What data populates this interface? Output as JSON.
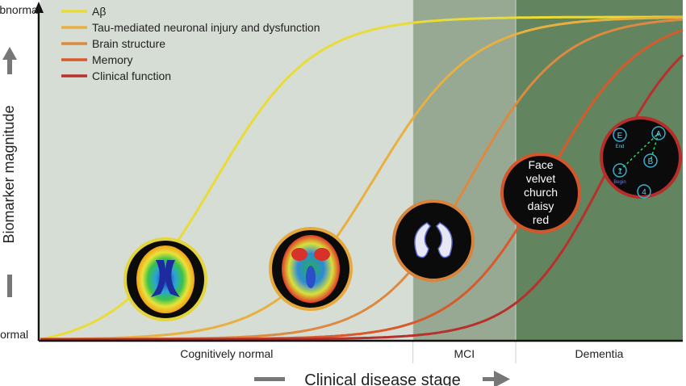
{
  "chart_data": {
    "type": "line",
    "title": "",
    "xlabel": "Clinical disease stage",
    "ylabel": "Biomarker magnitude",
    "y_tick_labels": [
      "Abnormal",
      "Normal"
    ],
    "stages": [
      "Cognitively normal",
      "MCI",
      "Dementia"
    ],
    "stage_bounds": [
      0,
      0.58,
      0.74,
      1.0
    ],
    "stage_colors": [
      "#d6ddd4",
      "#97a893",
      "#62845f"
    ],
    "xlim": [
      0,
      1
    ],
    "ylim": [
      0,
      1
    ],
    "legend": "top-left",
    "grid": false,
    "series": [
      {
        "name": "Aβ",
        "color": "#e9dc38",
        "midpoint": 0.27,
        "steepness": 13
      },
      {
        "name": "Tau-mediated neuronal injury and dysfunction",
        "color": "#e8b040",
        "midpoint": 0.52,
        "steepness": 13
      },
      {
        "name": "Brain structure",
        "color": "#dc8a40",
        "midpoint": 0.67,
        "steepness": 14
      },
      {
        "name": "Memory",
        "color": "#d85a2a",
        "midpoint": 0.79,
        "steepness": 14
      },
      {
        "name": "Clinical function",
        "color": "#b8302c",
        "midpoint": 0.88,
        "steepness": 15
      }
    ],
    "annotations": [
      {
        "name": "pet-amyloid-scan",
        "series": 0,
        "ring": "#e3d53a"
      },
      {
        "name": "pet-fdg-scan",
        "series": 1,
        "ring": "#e7a83c"
      },
      {
        "name": "mri-hippocampus-scan",
        "series": 2,
        "ring": "#d8843a"
      },
      {
        "name": "memory-word-list",
        "series": 3,
        "ring": "#d4562a",
        "words": [
          "Face",
          "velvet",
          "church",
          "daisy",
          "red"
        ]
      },
      {
        "name": "trail-making-test",
        "series": 4,
        "ring": "#b62e2a",
        "labels": [
          "E",
          "A",
          "B",
          "1",
          "4"
        ],
        "sub_labels": [
          "End",
          "Begin"
        ]
      }
    ]
  }
}
